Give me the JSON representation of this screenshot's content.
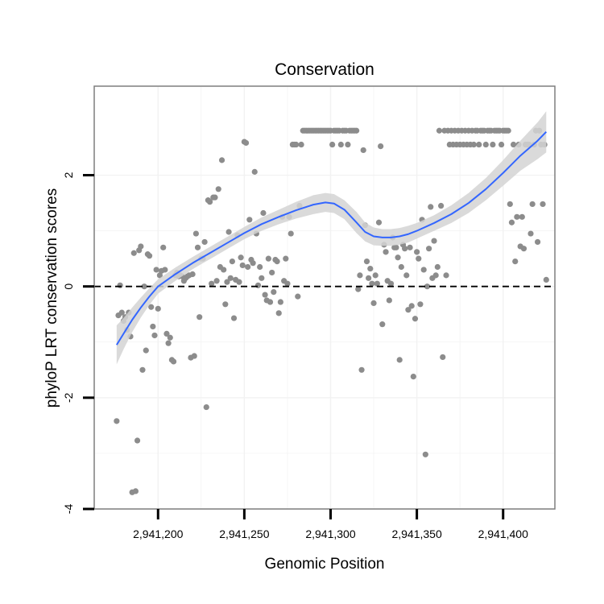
{
  "chart_data": {
    "type": "scatter",
    "title": "Conservation",
    "xlabel": "Genomic Position",
    "ylabel": "phyloP LRT conservation scores",
    "xlim": [
      2941163,
      2941430
    ],
    "ylim": [
      -4,
      3.6
    ],
    "x_ticks": [
      2941200,
      2941250,
      2941300,
      2941350,
      2941400
    ],
    "x_tick_labels": [
      "2,941,200",
      "2,941,250",
      "2,941,300",
      "2,941,350",
      "2,941,400"
    ],
    "y_ticks": [
      -4,
      -2,
      0,
      2
    ],
    "y_tick_labels": [
      "-4",
      "-2",
      "0",
      "2"
    ],
    "reference_line": {
      "y": 0,
      "style": "dashed"
    },
    "grid": true,
    "colors": {
      "points": "#8c8c8c",
      "smooth": "#3366ff",
      "band": "#d3d3d3",
      "grid": "#f2f2f2",
      "frame": "#7f7f7f"
    },
    "points": [
      [
        2941176,
        -2.42
      ],
      [
        2941177,
        -0.52
      ],
      [
        2941178,
        0.02
      ],
      [
        2941179,
        -0.47
      ],
      [
        2941180,
        -0.62
      ],
      [
        2941181,
        -0.55
      ],
      [
        2941182,
        -0.78
      ],
      [
        2941183,
        -0.47
      ],
      [
        2941184,
        -0.9
      ],
      [
        2941185,
        -3.7
      ],
      [
        2941186,
        0.6
      ],
      [
        2941187,
        -3.68
      ],
      [
        2941188,
        -2.77
      ],
      [
        2941189,
        0.65
      ],
      [
        2941190,
        0.72
      ],
      [
        2941191,
        -1.5
      ],
      [
        2941192,
        0.0
      ],
      [
        2941193,
        -1.15
      ],
      [
        2941194,
        0.58
      ],
      [
        2941195,
        0.55
      ],
      [
        2941196,
        -0.37
      ],
      [
        2941197,
        -0.72
      ],
      [
        2941198,
        -0.88
      ],
      [
        2941199,
        0.3
      ],
      [
        2941200,
        -0.4
      ],
      [
        2941201,
        0.2
      ],
      [
        2941202,
        0.28
      ],
      [
        2941203,
        0.7
      ],
      [
        2941204,
        0.3
      ],
      [
        2941205,
        -0.85
      ],
      [
        2941206,
        -1.02
      ],
      [
        2941207,
        -0.92
      ],
      [
        2941208,
        -1.32
      ],
      [
        2941209,
        -1.35
      ],
      [
        2941210,
        0.2
      ],
      [
        2941211,
        0.25
      ],
      [
        2941212,
        0.18
      ],
      [
        2941213,
        0.2
      ],
      [
        2941214,
        0.18
      ],
      [
        2941215,
        0.1
      ],
      [
        2941216,
        0.15
      ],
      [
        2941217,
        0.18
      ],
      [
        2941218,
        0.2
      ],
      [
        2941219,
        -1.28
      ],
      [
        2941220,
        0.22
      ],
      [
        2941221,
        -1.25
      ],
      [
        2941222,
        0.95
      ],
      [
        2941223,
        0.7
      ],
      [
        2941224,
        -0.55
      ],
      [
        2941225,
        0.5
      ],
      [
        2941226,
        0.5
      ],
      [
        2941227,
        0.8
      ],
      [
        2941228,
        -2.17
      ],
      [
        2941229,
        1.55
      ],
      [
        2941230,
        1.52
      ],
      [
        2941231,
        0.05
      ],
      [
        2941232,
        1.6
      ],
      [
        2941233,
        1.6
      ],
      [
        2941234,
        0.1
      ],
      [
        2941235,
        1.75
      ],
      [
        2941236,
        0.35
      ],
      [
        2941237,
        2.27
      ],
      [
        2941238,
        0.3
      ],
      [
        2941239,
        -0.32
      ],
      [
        2941240,
        0.08
      ],
      [
        2941241,
        0.98
      ],
      [
        2941242,
        0.15
      ],
      [
        2941243,
        0.45
      ],
      [
        2941244,
        -0.57
      ],
      [
        2941245,
        0.12
      ],
      [
        2941246,
        0.92
      ],
      [
        2941247,
        0.08
      ],
      [
        2941248,
        0.52
      ],
      [
        2941249,
        0.38
      ],
      [
        2941250,
        2.6
      ],
      [
        2941251,
        2.58
      ],
      [
        2941252,
        0.35
      ],
      [
        2941253,
        1.2
      ],
      [
        2941254,
        0.48
      ],
      [
        2941255,
        0.42
      ],
      [
        2941256,
        2.06
      ],
      [
        2941257,
        0.95
      ],
      [
        2941258,
        0.02
      ],
      [
        2941259,
        0.35
      ],
      [
        2941260,
        0.15
      ],
      [
        2941261,
        1.32
      ],
      [
        2941262,
        -0.15
      ],
      [
        2941263,
        -0.25
      ],
      [
        2941264,
        0.5
      ],
      [
        2941265,
        -0.28
      ],
      [
        2941266,
        0.25
      ],
      [
        2941267,
        -0.1
      ],
      [
        2941268,
        0.48
      ],
      [
        2941269,
        0.45
      ],
      [
        2941270,
        -0.48
      ],
      [
        2941271,
        -0.28
      ],
      [
        2941272,
        1.25
      ],
      [
        2941273,
        0.1
      ],
      [
        2941274,
        0.5
      ],
      [
        2941275,
        0.05
      ],
      [
        2941276,
        1.25
      ],
      [
        2941277,
        0.95
      ],
      [
        2941278,
        2.55
      ],
      [
        2941279,
        2.55
      ],
      [
        2941280,
        2.55
      ],
      [
        2941281,
        -0.18
      ],
      [
        2941282,
        1.45
      ],
      [
        2941283,
        2.55
      ],
      [
        2941284,
        2.8
      ],
      [
        2941285,
        2.8
      ],
      [
        2941286,
        2.8
      ],
      [
        2941287,
        2.8
      ],
      [
        2941288,
        2.8
      ],
      [
        2941289,
        2.8
      ],
      [
        2941290,
        2.8
      ],
      [
        2941291,
        2.8
      ],
      [
        2941292,
        2.8
      ],
      [
        2941293,
        2.8
      ],
      [
        2941294,
        2.8
      ],
      [
        2941295,
        2.8
      ],
      [
        2941296,
        2.8
      ],
      [
        2941297,
        2.8
      ],
      [
        2941298,
        2.8
      ],
      [
        2941299,
        2.8
      ],
      [
        2941300,
        2.8
      ],
      [
        2941301,
        2.55
      ],
      [
        2941302,
        2.8
      ],
      [
        2941303,
        2.8
      ],
      [
        2941304,
        2.8
      ],
      [
        2941305,
        2.8
      ],
      [
        2941306,
        2.55
      ],
      [
        2941307,
        2.8
      ],
      [
        2941308,
        2.8
      ],
      [
        2941309,
        2.8
      ],
      [
        2941310,
        2.55
      ],
      [
        2941311,
        2.8
      ],
      [
        2941312,
        2.8
      ],
      [
        2941313,
        2.8
      ],
      [
        2941314,
        2.8
      ],
      [
        2941315,
        2.8
      ],
      [
        2941316,
        -0.05
      ],
      [
        2941317,
        0.2
      ],
      [
        2941318,
        -1.5
      ],
      [
        2941319,
        2.45
      ],
      [
        2941320,
        1.1
      ],
      [
        2941321,
        0.45
      ],
      [
        2941322,
        0.15
      ],
      [
        2941323,
        0.32
      ],
      [
        2941324,
        0.05
      ],
      [
        2941325,
        -0.3
      ],
      [
        2941326,
        0.2
      ],
      [
        2941327,
        0.05
      ],
      [
        2941328,
        1.15
      ],
      [
        2941329,
        2.52
      ],
      [
        2941330,
        -0.68
      ],
      [
        2941331,
        0.75
      ],
      [
        2941332,
        0.62
      ],
      [
        2941333,
        0.1
      ],
      [
        2941334,
        -0.25
      ],
      [
        2941335,
        0.05
      ],
      [
        2941336,
        0.88
      ],
      [
        2941337,
        0.7
      ],
      [
        2941338,
        0.7
      ],
      [
        2941339,
        0.52
      ],
      [
        2941340,
        -1.32
      ],
      [
        2941341,
        0.35
      ],
      [
        2941342,
        0.75
      ],
      [
        2941343,
        0.68
      ],
      [
        2941344,
        0.2
      ],
      [
        2941345,
        -0.42
      ],
      [
        2941346,
        0.7
      ],
      [
        2941347,
        -0.35
      ],
      [
        2941348,
        -1.62
      ],
      [
        2941349,
        -0.58
      ],
      [
        2941350,
        0.62
      ],
      [
        2941351,
        0.5
      ],
      [
        2941352,
        -0.32
      ],
      [
        2941353,
        1.2
      ],
      [
        2941354,
        0.3
      ],
      [
        2941355,
        -3.02
      ],
      [
        2941356,
        0.0
      ],
      [
        2941357,
        0.68
      ],
      [
        2941358,
        1.43
      ],
      [
        2941359,
        0.15
      ],
      [
        2941360,
        0.82
      ],
      [
        2941361,
        0.2
      ],
      [
        2941362,
        0.35
      ],
      [
        2941363,
        2.8
      ],
      [
        2941364,
        1.45
      ],
      [
        2941365,
        -1.27
      ],
      [
        2941366,
        2.8
      ],
      [
        2941367,
        0.2
      ],
      [
        2941368,
        2.8
      ],
      [
        2941369,
        2.55
      ],
      [
        2941370,
        2.8
      ],
      [
        2941371,
        2.55
      ],
      [
        2941372,
        2.8
      ],
      [
        2941373,
        2.55
      ],
      [
        2941374,
        2.8
      ],
      [
        2941375,
        2.55
      ],
      [
        2941376,
        2.8
      ],
      [
        2941377,
        2.55
      ],
      [
        2941378,
        2.8
      ],
      [
        2941379,
        2.55
      ],
      [
        2941380,
        2.8
      ],
      [
        2941381,
        2.55
      ],
      [
        2941382,
        2.8
      ],
      [
        2941383,
        2.55
      ],
      [
        2941384,
        2.8
      ],
      [
        2941385,
        2.8
      ],
      [
        2941386,
        2.55
      ],
      [
        2941387,
        2.8
      ],
      [
        2941388,
        2.8
      ],
      [
        2941389,
        2.8
      ],
      [
        2941390,
        2.55
      ],
      [
        2941391,
        2.8
      ],
      [
        2941392,
        2.8
      ],
      [
        2941393,
        2.8
      ],
      [
        2941394,
        2.55
      ],
      [
        2941395,
        2.8
      ],
      [
        2941396,
        2.8
      ],
      [
        2941397,
        2.8
      ],
      [
        2941398,
        2.8
      ],
      [
        2941399,
        2.55
      ],
      [
        2941400,
        2.8
      ],
      [
        2941401,
        2.8
      ],
      [
        2941402,
        2.8
      ],
      [
        2941403,
        2.8
      ],
      [
        2941404,
        1.48
      ],
      [
        2941405,
        1.15
      ],
      [
        2941406,
        2.55
      ],
      [
        2941407,
        0.45
      ],
      [
        2941408,
        1.25
      ],
      [
        2941409,
        2.55
      ],
      [
        2941410,
        0.72
      ],
      [
        2941411,
        1.25
      ],
      [
        2941412,
        0.68
      ],
      [
        2941413,
        2.55
      ],
      [
        2941414,
        2.55
      ],
      [
        2941415,
        2.55
      ],
      [
        2941416,
        0.95
      ],
      [
        2941417,
        1.48
      ],
      [
        2941418,
        2.55
      ],
      [
        2941419,
        2.8
      ],
      [
        2941420,
        0.8
      ],
      [
        2941421,
        2.8
      ],
      [
        2941422,
        2.55
      ],
      [
        2941423,
        1.48
      ],
      [
        2941424,
        2.55
      ],
      [
        2941425,
        0.12
      ]
    ],
    "smooth_curve": [
      [
        2941176,
        -1.05
      ],
      [
        2941180,
        -0.85
      ],
      [
        2941185,
        -0.6
      ],
      [
        2941190,
        -0.38
      ],
      [
        2941195,
        -0.18
      ],
      [
        2941200,
        0.0
      ],
      [
        2941210,
        0.22
      ],
      [
        2941220,
        0.42
      ],
      [
        2941230,
        0.6
      ],
      [
        2941240,
        0.78
      ],
      [
        2941250,
        0.96
      ],
      [
        2941260,
        1.12
      ],
      [
        2941270,
        1.25
      ],
      [
        2941280,
        1.37
      ],
      [
        2941290,
        1.47
      ],
      [
        2941297,
        1.51
      ],
      [
        2941302,
        1.49
      ],
      [
        2941308,
        1.38
      ],
      [
        2941315,
        1.15
      ],
      [
        2941320,
        0.98
      ],
      [
        2941325,
        0.9
      ],
      [
        2941330,
        0.88
      ],
      [
        2941335,
        0.88
      ],
      [
        2941340,
        0.9
      ],
      [
        2941345,
        0.94
      ],
      [
        2941350,
        1.0
      ],
      [
        2941360,
        1.14
      ],
      [
        2941370,
        1.3
      ],
      [
        2941380,
        1.5
      ],
      [
        2941390,
        1.75
      ],
      [
        2941400,
        2.04
      ],
      [
        2941410,
        2.35
      ],
      [
        2941420,
        2.62
      ],
      [
        2941425,
        2.78
      ]
    ],
    "confidence_band": [
      [
        2941176,
        -0.7,
        -1.4
      ],
      [
        2941180,
        -0.57,
        -1.13
      ],
      [
        2941185,
        -0.38,
        -0.82
      ],
      [
        2941190,
        -0.2,
        -0.56
      ],
      [
        2941195,
        -0.03,
        -0.33
      ],
      [
        2941200,
        0.13,
        -0.13
      ],
      [
        2941210,
        0.34,
        0.1
      ],
      [
        2941220,
        0.53,
        0.31
      ],
      [
        2941230,
        0.71,
        0.49
      ],
      [
        2941240,
        0.89,
        0.67
      ],
      [
        2941250,
        1.07,
        0.85
      ],
      [
        2941260,
        1.24,
        1.0
      ],
      [
        2941270,
        1.38,
        1.12
      ],
      [
        2941280,
        1.52,
        1.22
      ],
      [
        2941290,
        1.64,
        1.3
      ],
      [
        2941297,
        1.68,
        1.34
      ],
      [
        2941302,
        1.66,
        1.32
      ],
      [
        2941308,
        1.55,
        1.21
      ],
      [
        2941315,
        1.34,
        0.96
      ],
      [
        2941320,
        1.15,
        0.81
      ],
      [
        2941325,
        1.06,
        0.74
      ],
      [
        2941330,
        1.03,
        0.73
      ],
      [
        2941335,
        1.03,
        0.73
      ],
      [
        2941340,
        1.05,
        0.75
      ],
      [
        2941345,
        1.09,
        0.79
      ],
      [
        2941350,
        1.14,
        0.86
      ],
      [
        2941360,
        1.28,
        1.0
      ],
      [
        2941370,
        1.46,
        1.14
      ],
      [
        2941380,
        1.68,
        1.32
      ],
      [
        2941390,
        1.95,
        1.55
      ],
      [
        2941400,
        2.27,
        1.81
      ],
      [
        2941410,
        2.62,
        2.08
      ],
      [
        2941420,
        2.95,
        2.29
      ],
      [
        2941425,
        3.15,
        2.41
      ]
    ]
  }
}
